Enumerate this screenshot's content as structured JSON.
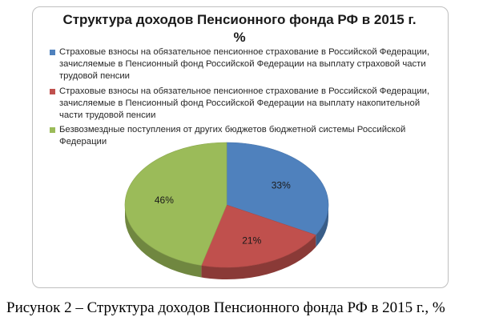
{
  "chart_data": {
    "type": "pie",
    "title": "Структура доходов Пенсионного фонда РФ в 2015 г.",
    "title_unit": "%",
    "legend_position": "top",
    "series": [
      {
        "name": "Страховые взносы на обязательное пенсионное страхование в Российской Федерации, зачисляемые в Пенсионный фонд Российской Федерации на выплату страховой части трудовой пенсии",
        "value": 33,
        "label": "33%",
        "color": "#4f81bd"
      },
      {
        "name": "Страховые взносы на обязательное пенсионное страхование в Российской Федерации, зачисляемые в Пенсионный фонд Российской Федерации на выплату накопительной части трудовой пенсии",
        "value": 21,
        "label": "21%",
        "color": "#c0504d"
      },
      {
        "name": "Безвозмездные поступления от других бюджетов бюджетной системы Российской Федерации",
        "value": 46,
        "label": "46%",
        "color": "#9bbb59"
      }
    ]
  },
  "caption": "Рисунок 2 – Структура доходов Пенсионного фонда РФ в 2015 г., %"
}
